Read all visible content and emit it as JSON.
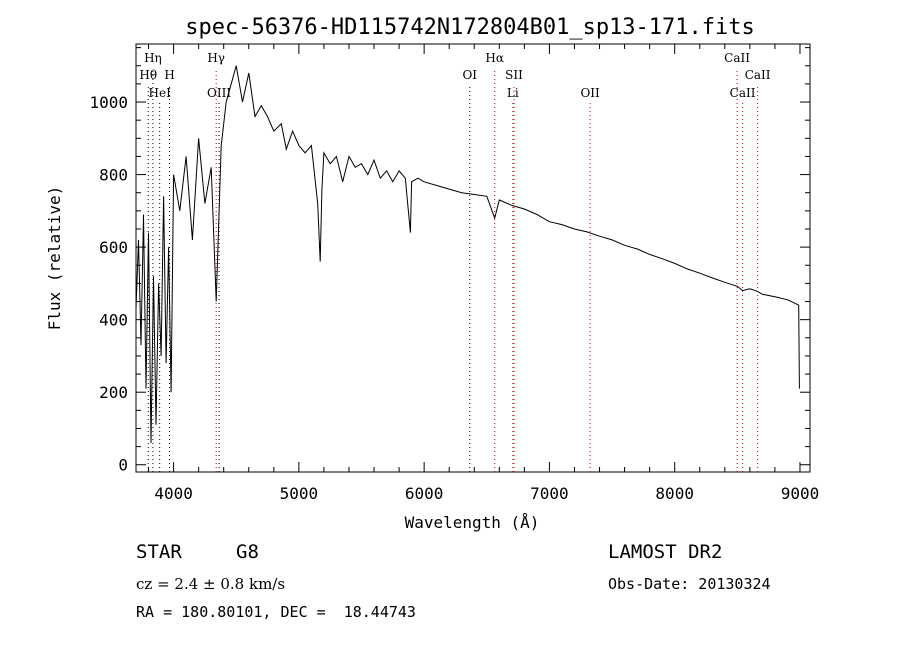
{
  "chart_data": {
    "type": "line",
    "title": "spec-56376-HD115742N172804B01_sp13-171.fits",
    "xlabel": "Wavelength (Å)",
    "ylabel": "Flux (relative)",
    "xlim": [
      3700,
      9080
    ],
    "ylim": [
      -20,
      1160
    ],
    "xticks": [
      4000,
      5000,
      6000,
      7000,
      8000,
      9000
    ],
    "yticks": [
      0,
      200,
      400,
      600,
      800,
      1000
    ],
    "x_tick_labels": [
      "4000",
      "5000",
      "6000",
      "7000",
      "8000",
      "9000"
    ],
    "y_tick_labels": [
      "0",
      "200",
      "400",
      "600",
      "800",
      "1000"
    ],
    "series": [
      {
        "x": [
          3700,
          3720,
          3740,
          3760,
          3780,
          3800,
          3820,
          3840,
          3860,
          3880,
          3900,
          3920,
          3940,
          3960,
          3980,
          4000,
          4050,
          4100,
          4150,
          4200,
          4250,
          4300,
          4340,
          4380,
          4420,
          4460,
          4500,
          4550,
          4600,
          4650,
          4700,
          4750,
          4800,
          4860,
          4900,
          4950,
          5000,
          5050,
          5100,
          5150,
          5170,
          5184,
          5200,
          5250,
          5300,
          5350,
          5400,
          5450,
          5500,
          5550,
          5600,
          5650,
          5700,
          5750,
          5800,
          5850,
          5890,
          5900,
          5950,
          6000,
          6100,
          6200,
          6300,
          6400,
          6500,
          6563,
          6600,
          6700,
          6800,
          6900,
          7000,
          7100,
          7200,
          7300,
          7400,
          7500,
          7600,
          7700,
          7800,
          7900,
          8000,
          8100,
          8200,
          8300,
          8400,
          8500,
          8542,
          8600,
          8662,
          8700,
          8800,
          8900,
          8960,
          8990,
          8995
        ],
        "y": [
          430,
          620,
          330,
          690,
          210,
          640,
          60,
          520,
          110,
          500,
          300,
          740,
          280,
          600,
          200,
          800,
          700,
          850,
          620,
          900,
          720,
          820,
          450,
          880,
          1000,
          1050,
          1100,
          1000,
          1080,
          960,
          990,
          960,
          920,
          940,
          870,
          920,
          880,
          860,
          880,
          720,
          560,
          760,
          860,
          830,
          850,
          780,
          850,
          820,
          830,
          800,
          840,
          790,
          810,
          780,
          810,
          790,
          640,
          780,
          790,
          780,
          770,
          760,
          750,
          745,
          740,
          680,
          730,
          715,
          705,
          690,
          670,
          662,
          650,
          642,
          630,
          620,
          605,
          595,
          580,
          568,
          555,
          540,
          528,
          515,
          503,
          492,
          480,
          485,
          478,
          470,
          463,
          455,
          445,
          440,
          210
        ]
      }
    ],
    "grid": false,
    "line_color": "#000000",
    "marker_line_color_red": "#cc0000",
    "marker_line_color_black": "#000000",
    "spectral_lines": [
      {
        "label": "Hη",
        "x": 3835,
        "row": 1,
        "color": "#000000"
      },
      {
        "label": "Hθ",
        "x": 3798,
        "row": 2,
        "color": "#000000"
      },
      {
        "label": "H",
        "x": 3968,
        "row": 2,
        "color": "#000000"
      },
      {
        "label": "HeI",
        "x": 3889,
        "row": 3,
        "color": "#000000"
      },
      {
        "label": "Hγ",
        "x": 4340,
        "row": 1,
        "color": "#cc0000"
      },
      {
        "label": "OIII",
        "x": 4363,
        "row": 3,
        "color": "#000000"
      },
      {
        "label": "Hα",
        "x": 6563,
        "row": 1,
        "color": "#cc0000"
      },
      {
        "label": "OI",
        "x": 6364,
        "row": 2,
        "color": "#000000"
      },
      {
        "label": "SII",
        "x": 6717,
        "row": 2,
        "color": "#cc0000"
      },
      {
        "label": "Li",
        "x": 6708,
        "row": 3,
        "color": "#cc0000"
      },
      {
        "label": "OII",
        "x": 7325,
        "row": 3,
        "color": "#cc0000"
      },
      {
        "label": "CaII",
        "x": 8498,
        "row": 1,
        "color": "#cc0000"
      },
      {
        "label": "CaII",
        "x": 8662,
        "row": 2,
        "color": "#cc0000"
      },
      {
        "label": "CaII",
        "x": 8542,
        "row": 3,
        "color": "#cc0000"
      }
    ]
  },
  "info": {
    "object_class": "STAR",
    "subclass": "G8",
    "survey": "LAMOST DR2",
    "redshift": "cz = 2.4 ± 0.8 km/s",
    "obs_date": "Obs-Date: 20130324",
    "coords": "RA = 180.80101, DEC =  18.44743"
  }
}
